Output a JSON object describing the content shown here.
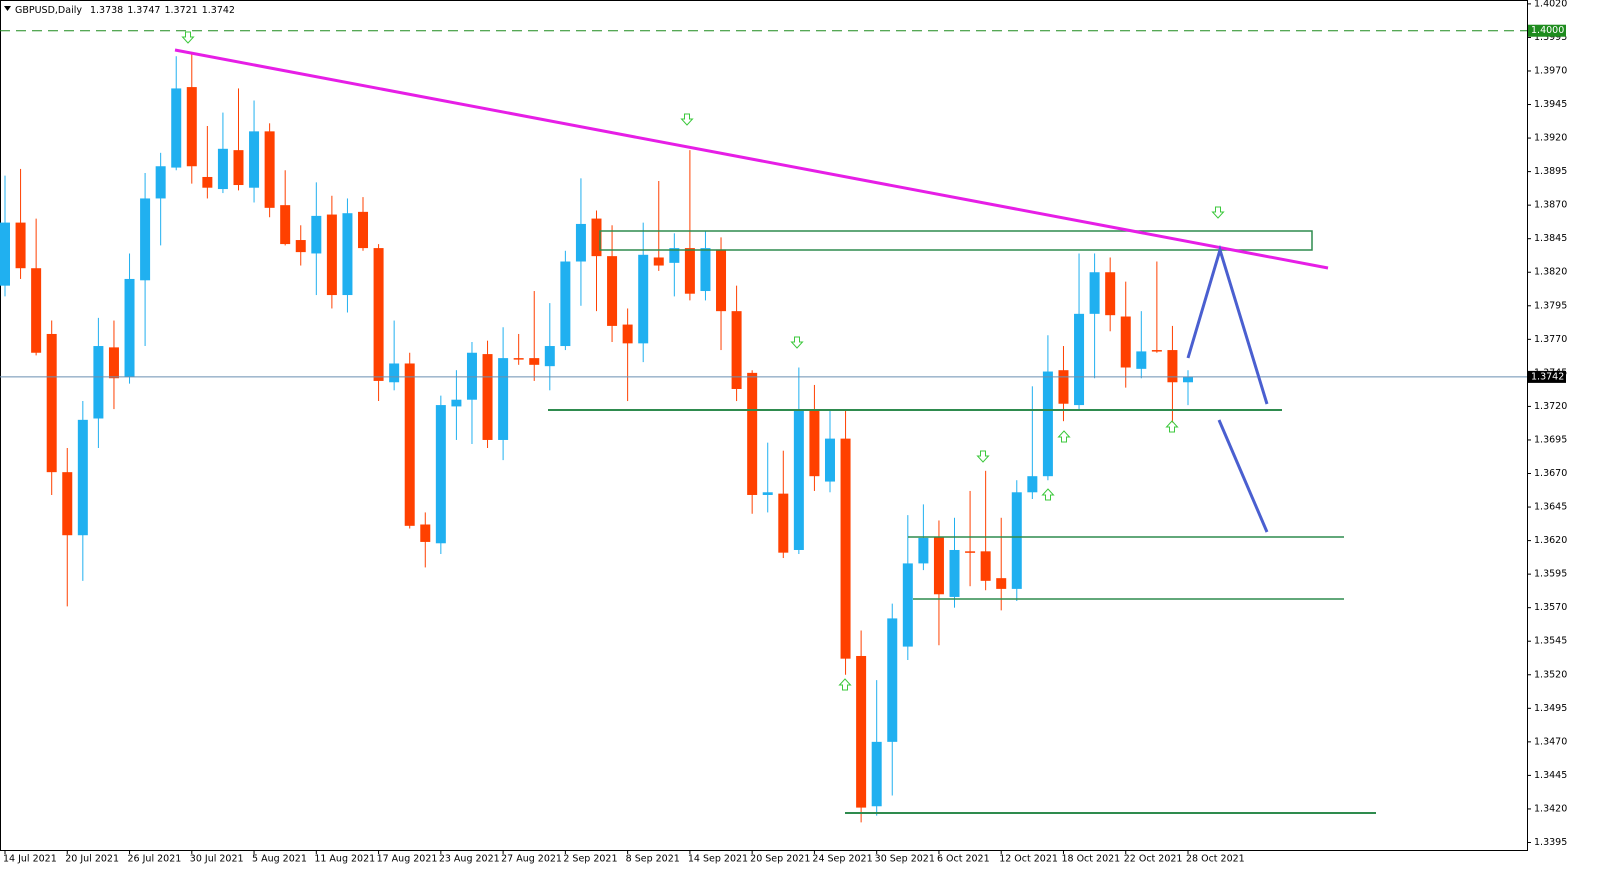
{
  "chart_data": {
    "type": "candlestick",
    "title": "GBPUSD,Daily",
    "up_color": "#20b0f0",
    "down_color": "#ff4000",
    "x": [
      "14 Jul 2021",
      null,
      null,
      null,
      "20 Jul 2021",
      null,
      null,
      null,
      "26 Jul 2021",
      null,
      null,
      null,
      "30 Jul 2021",
      null,
      null,
      null,
      "5 Aug 2021",
      null,
      null,
      null,
      "11 Aug 2021",
      null,
      null,
      null,
      "17 Aug 2021",
      null,
      null,
      null,
      "23 Aug 2021",
      null,
      null,
      null,
      "27 Aug 2021",
      null,
      null,
      null,
      "2 Sep 2021",
      null,
      null,
      null,
      "8 Sep 2021",
      null,
      null,
      null,
      "14 Sep 2021",
      null,
      null,
      null,
      "20 Sep 2021",
      null,
      null,
      null,
      "24 Sep 2021",
      null,
      null,
      null,
      "30 Sep 2021",
      null,
      null,
      null,
      "6 Oct 2021",
      null,
      null,
      null,
      "12 Oct 2021",
      null,
      null,
      null,
      "18 Oct 2021",
      null,
      null,
      null,
      "22 Oct 2021",
      null,
      null,
      null,
      "28 Oct 2021"
    ],
    "open": [
      1.381,
      1.3857,
      1.3823,
      1.3774,
      1.3671,
      1.3624,
      1.3711,
      1.3764,
      1.3742,
      1.3814,
      1.3875,
      1.3898,
      1.3958,
      1.3891,
      1.3882,
      1.3911,
      1.3883,
      1.3925,
      1.387,
      1.3844,
      1.3834,
      1.3863,
      1.3803,
      1.3865,
      1.3838,
      1.3738,
      1.3752,
      1.3632,
      1.3618,
      1.372,
      1.3725,
      1.3759,
      1.3695,
      1.3756,
      1.3756,
      1.375,
      1.3765,
      1.3828,
      1.386,
      1.3832,
      1.3781,
      1.3767,
      1.3831,
      1.3827,
      1.3838,
      1.3806,
      1.3837,
      1.3791,
      1.3745,
      1.3654,
      1.3655,
      1.3613,
      1.3717,
      1.3664,
      1.3696,
      1.3534,
      1.3422,
      1.347,
      1.3541,
      1.3603,
      1.3623,
      1.3578,
      1.3612,
      1.3612,
      1.3592,
      1.3584,
      1.3656,
      1.3668,
      1.3747,
      1.3721,
      1.3789,
      1.382,
      1.3787,
      1.3748,
      1.3762,
      1.3762,
      1.3738
    ],
    "high": [
      1.3892,
      1.3897,
      1.386,
      1.3784,
      1.3689,
      1.3724,
      1.3786,
      1.3784,
      1.3834,
      1.3894,
      1.3909,
      1.3981,
      1.3984,
      1.3929,
      1.3939,
      1.3957,
      1.3948,
      1.3931,
      1.3896,
      1.3855,
      1.3887,
      1.3877,
      1.3875,
      1.3876,
      1.3841,
      1.3784,
      1.376,
      1.3641,
      1.3728,
      1.3747,
      1.3768,
      1.3769,
      1.3779,
      1.3774,
      1.3806,
      1.3797,
      1.3836,
      1.389,
      1.3866,
      1.3855,
      1.3793,
      1.3857,
      1.3888,
      1.3849,
      1.3911,
      1.3851,
      1.3846,
      1.381,
      1.3747,
      1.3693,
      1.3687,
      1.3749,
      1.3736,
      1.3717,
      1.3717,
      1.3553,
      1.3516,
      1.3573,
      1.3639,
      1.3647,
      1.3635,
      1.3637,
      1.3657,
      1.3672,
      1.3637,
      1.3665,
      1.3735,
      1.3773,
      1.3765,
      1.3834,
      1.3834,
      1.3831,
      1.3813,
      1.3791,
      1.3828,
      1.378,
      1.3747
    ],
    "low": [
      1.3802,
      1.3815,
      1.3758,
      1.3654,
      1.3571,
      1.359,
      1.3689,
      1.3718,
      1.3737,
      1.3765,
      1.384,
      1.3896,
      1.3886,
      1.3875,
      1.3879,
      1.3881,
      1.3872,
      1.3861,
      1.384,
      1.3825,
      1.3803,
      1.3793,
      1.379,
      1.3836,
      1.3724,
      1.3732,
      1.3629,
      1.36,
      1.361,
      1.3695,
      1.3692,
      1.3689,
      1.368,
      1.3751,
      1.3739,
      1.3732,
      1.3762,
      1.3795,
      1.3791,
      1.3768,
      1.3724,
      1.3753,
      1.3821,
      1.3802,
      1.3799,
      1.3799,
      1.3762,
      1.3724,
      1.364,
      1.3641,
      1.3607,
      1.361,
      1.3657,
      1.3656,
      1.352,
      1.341,
      1.3415,
      1.343,
      1.3531,
      1.3598,
      1.3542,
      1.357,
      1.3586,
      1.3583,
      1.3568,
      1.3575,
      1.3651,
      1.3665,
      1.3709,
      1.3717,
      1.3741,
      1.3776,
      1.3734,
      1.3741,
      1.376,
      1.3708,
      1.3721
    ],
    "close": [
      1.3857,
      1.3823,
      1.376,
      1.3671,
      1.3624,
      1.371,
      1.3765,
      1.3741,
      1.3815,
      1.3875,
      1.3899,
      1.3957,
      1.3899,
      1.3883,
      1.3912,
      1.3885,
      1.3925,
      1.3868,
      1.3841,
      1.3835,
      1.3862,
      1.3803,
      1.3864,
      1.3838,
      1.3739,
      1.3752,
      1.3631,
      1.3619,
      1.3721,
      1.3725,
      1.376,
      1.3695,
      1.3756,
      1.3755,
      1.3751,
      1.3765,
      1.3828,
      1.3856,
      1.3832,
      1.378,
      1.3767,
      1.3833,
      1.3825,
      1.3838,
      1.3804,
      1.3838,
      1.3791,
      1.3733,
      1.3654,
      1.3656,
      1.3611,
      1.3717,
      1.3668,
      1.3696,
      1.3532,
      1.3421,
      1.347,
      1.3562,
      1.3603,
      1.3622,
      1.358,
      1.3613,
      1.3611,
      1.359,
      1.3584,
      1.3656,
      1.3668,
      1.3746,
      1.3722,
      1.3789,
      1.382,
      1.3788,
      1.3749,
      1.3761,
      1.3761,
      1.3738,
      1.3742
    ],
    "ylim": [
      1.33894,
      1.40229
    ],
    "yticks": [
      {
        "value": 1.402,
        "label": "1.4020"
      },
      1.3995,
      {
        "value": 1.397,
        "label": "1.3970"
      },
      1.3945,
      {
        "value": 1.392,
        "label": "1.3920"
      },
      1.3895,
      {
        "value": 1.387,
        "label": "1.3870"
      },
      1.3845,
      {
        "value": 1.382,
        "label": "1.3820"
      },
      1.3795,
      {
        "value": 1.377,
        "label": "1.3770"
      },
      1.3745,
      {
        "value": 1.372,
        "label": "1.3720"
      },
      1.3695,
      {
        "value": 1.367,
        "label": "1.3670"
      },
      1.3645,
      {
        "value": 1.362,
        "label": "1.3620"
      },
      1.3595,
      {
        "value": 1.357,
        "label": "1.3570"
      },
      1.3545,
      {
        "value": 1.352,
        "label": "1.3520"
      },
      1.3495,
      {
        "value": 1.347,
        "label": "1.3470"
      },
      1.3445,
      {
        "value": 1.342,
        "label": "1.3420"
      },
      1.3395
    ],
    "level_line": {
      "value": 1.4,
      "label": "1.4000",
      "color": "#1e8c1e"
    },
    "grid": false
  }
}
